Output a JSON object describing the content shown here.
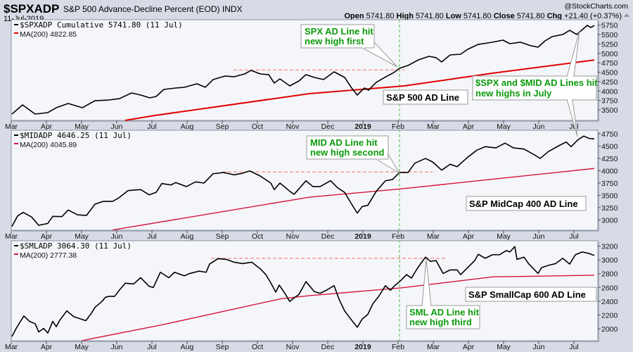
{
  "header": {
    "symbol": "$SPXADP",
    "description": "S&P 500 Advance-Decline Percent (EOD) INDX",
    "date": "11-Jul-2019",
    "watermark": "@StockCharts.com",
    "open_label": "Open",
    "open": "5741.80",
    "high_label": "High",
    "high": "5741.80",
    "low_label": "Low",
    "low": "5741.80",
    "close_label": "Close",
    "close": "5741.80",
    "chg_label": "Chg",
    "chg": "+21.40 (+0.37%)"
  },
  "colors": {
    "line": "#000000",
    "ma_spx": "#e00000",
    "ma_other": "#d4143c",
    "dashed_high": "#f59a9a",
    "feb_marker": "#7fd07f",
    "annotation_text": "#0a9a0a",
    "plot_bg": "#f5f6fa",
    "page_bg": "#d7dbe5"
  },
  "x_axis": {
    "unit": "months since Mar 2018",
    "ticks": [
      {
        "m": 0,
        "label": "Mar"
      },
      {
        "m": 1,
        "label": "Apr"
      },
      {
        "m": 2,
        "label": "May"
      },
      {
        "m": 3,
        "label": "Jun"
      },
      {
        "m": 4,
        "label": "Jul"
      },
      {
        "m": 5,
        "label": "Aug"
      },
      {
        "m": 6,
        "label": "Sep"
      },
      {
        "m": 7,
        "label": "Oct"
      },
      {
        "m": 8,
        "label": "Nov"
      },
      {
        "m": 9,
        "label": "Dec"
      },
      {
        "m": 10,
        "label": "2019",
        "bold": true
      },
      {
        "m": 11,
        "label": "Feb"
      },
      {
        "m": 12,
        "label": "Mar"
      },
      {
        "m": 13,
        "label": "Apr"
      },
      {
        "m": 14,
        "label": "May"
      },
      {
        "m": 15,
        "label": "Jun"
      },
      {
        "m": 16,
        "label": "Jul"
      }
    ],
    "marker_m": 11.04
  },
  "chart_data": [
    {
      "type": "line",
      "legend": "$SPXADP Cumulative 5741.80 (11 Jul)",
      "ma_legend": "MA(200) 4822.85",
      "label": "S&P 500 AD Line",
      "ylim": [
        3220,
        5894
      ],
      "yticks": [
        3500,
        3750,
        4000,
        4250,
        4500,
        4750,
        5000,
        5250,
        5500,
        5750
      ],
      "dashed_high": {
        "from_m": 6.32,
        "to_m": 11.18,
        "value": 4560
      },
      "series": [
        [
          0.02,
          3388
        ],
        [
          0.32,
          3631
        ],
        [
          0.68,
          3388
        ],
        [
          1.04,
          3426
        ],
        [
          1.28,
          3556
        ],
        [
          1.62,
          3669
        ],
        [
          2.02,
          3556
        ],
        [
          2.38,
          3743
        ],
        [
          2.78,
          3762
        ],
        [
          3.08,
          3799
        ],
        [
          3.42,
          3949
        ],
        [
          3.68,
          3893
        ],
        [
          3.94,
          3818
        ],
        [
          4.12,
          3856
        ],
        [
          4.34,
          4043
        ],
        [
          4.68,
          4080
        ],
        [
          4.92,
          4099
        ],
        [
          5.28,
          4192
        ],
        [
          5.52,
          4099
        ],
        [
          5.74,
          4304
        ],
        [
          6.08,
          4398
        ],
        [
          6.34,
          4379
        ],
        [
          6.64,
          4454
        ],
        [
          6.82,
          4548
        ],
        [
          7.08,
          4454
        ],
        [
          7.32,
          4435
        ],
        [
          7.48,
          4211
        ],
        [
          7.64,
          4323
        ],
        [
          7.92,
          4136
        ],
        [
          8.18,
          4267
        ],
        [
          8.38,
          4435
        ],
        [
          8.62,
          4361
        ],
        [
          8.88,
          4304
        ],
        [
          9.18,
          4510
        ],
        [
          9.48,
          4361
        ],
        [
          9.68,
          4080
        ],
        [
          9.84,
          3893
        ],
        [
          10.04,
          4080
        ],
        [
          10.16,
          4024
        ],
        [
          10.38,
          4230
        ],
        [
          10.62,
          4361
        ],
        [
          10.88,
          4491
        ],
        [
          11.04,
          4604
        ],
        [
          11.28,
          4678
        ],
        [
          11.58,
          4828
        ],
        [
          11.88,
          4922
        ],
        [
          12.08,
          4885
        ],
        [
          12.24,
          4772
        ],
        [
          12.48,
          4959
        ],
        [
          12.78,
          4978
        ],
        [
          12.98,
          5109
        ],
        [
          13.28,
          5239
        ],
        [
          13.68,
          5296
        ],
        [
          13.98,
          5352
        ],
        [
          14.18,
          5258
        ],
        [
          14.48,
          5296
        ],
        [
          14.78,
          5202
        ],
        [
          14.98,
          5165
        ],
        [
          15.18,
          5333
        ],
        [
          15.38,
          5445
        ],
        [
          15.68,
          5501
        ],
        [
          15.88,
          5613
        ],
        [
          16.08,
          5501
        ],
        [
          16.24,
          5632
        ],
        [
          16.38,
          5744
        ],
        [
          16.48,
          5688
        ],
        [
          16.58,
          5742
        ]
      ],
      "ma": [
        [
          3.24,
          3220
        ],
        [
          4.08,
          3351
        ],
        [
          8.48,
          3930
        ],
        [
          11.18,
          4136
        ],
        [
          13.68,
          4473
        ],
        [
          16.58,
          4823
        ]
      ]
    },
    {
      "type": "line",
      "legend": "$MIDADP 4646.25 (11 Jul)",
      "ma_legend": "MA(200) 4045.89",
      "label": "S&P MidCap 400 AD Line",
      "ylim": [
        2791,
        4822
      ],
      "yticks": [
        3000,
        3250,
        3500,
        3750,
        4000,
        4250,
        4500,
        4750
      ],
      "dashed_high": {
        "from_m": 6.0,
        "to_m": 11.98,
        "value": 3975
      },
      "series": [
        [
          0.02,
          2867
        ],
        [
          0.18,
          3081
        ],
        [
          0.34,
          3153
        ],
        [
          0.58,
          3058
        ],
        [
          0.78,
          2891
        ],
        [
          1.04,
          2929
        ],
        [
          1.18,
          3073
        ],
        [
          1.44,
          3067
        ],
        [
          1.62,
          3201
        ],
        [
          1.88,
          3105
        ],
        [
          2.14,
          3091
        ],
        [
          2.38,
          3320
        ],
        [
          2.62,
          3377
        ],
        [
          2.88,
          3377
        ],
        [
          3.04,
          3439
        ],
        [
          3.32,
          3596
        ],
        [
          3.68,
          3616
        ],
        [
          3.92,
          3510
        ],
        [
          4.12,
          3559
        ],
        [
          4.28,
          3739
        ],
        [
          4.54,
          3710
        ],
        [
          4.68,
          3759
        ],
        [
          4.98,
          3677
        ],
        [
          5.24,
          3773
        ],
        [
          5.48,
          3749
        ],
        [
          5.74,
          3939
        ],
        [
          6.04,
          3963
        ],
        [
          6.34,
          3916
        ],
        [
          6.58,
          3949
        ],
        [
          6.78,
          3996
        ],
        [
          7.08,
          3892
        ],
        [
          7.38,
          3749
        ],
        [
          7.48,
          3616
        ],
        [
          7.64,
          3749
        ],
        [
          7.92,
          3582
        ],
        [
          8.04,
          3520
        ],
        [
          8.18,
          3630
        ],
        [
          8.38,
          3796
        ],
        [
          8.58,
          3677
        ],
        [
          8.78,
          3677
        ],
        [
          9.08,
          3796
        ],
        [
          9.28,
          3653
        ],
        [
          9.48,
          3559
        ],
        [
          9.68,
          3320
        ],
        [
          9.84,
          3138
        ],
        [
          9.98,
          3273
        ],
        [
          10.14,
          3296
        ],
        [
          10.38,
          3582
        ],
        [
          10.64,
          3796
        ],
        [
          10.84,
          3820
        ],
        [
          11.04,
          3963
        ],
        [
          11.28,
          3963
        ],
        [
          11.48,
          4154
        ],
        [
          11.78,
          4249
        ],
        [
          11.98,
          4178
        ],
        [
          12.24,
          4011
        ],
        [
          12.48,
          4131
        ],
        [
          12.68,
          4082
        ],
        [
          12.98,
          4274
        ],
        [
          13.24,
          4417
        ],
        [
          13.48,
          4488
        ],
        [
          13.78,
          4464
        ],
        [
          14.04,
          4560
        ],
        [
          14.28,
          4464
        ],
        [
          14.58,
          4440
        ],
        [
          14.88,
          4321
        ],
        [
          15.04,
          4249
        ],
        [
          15.28,
          4392
        ],
        [
          15.58,
          4511
        ],
        [
          15.78,
          4583
        ],
        [
          15.92,
          4488
        ],
        [
          16.12,
          4631
        ],
        [
          16.28,
          4703
        ],
        [
          16.44,
          4654
        ],
        [
          16.58,
          4646
        ]
      ],
      "ma": [
        [
          2.88,
          2795
        ],
        [
          8.48,
          3463
        ],
        [
          11.08,
          3630
        ],
        [
          16.58,
          4046
        ]
      ]
    },
    {
      "type": "line",
      "legend": "$SMLADP 3064.30 (11 Jul)",
      "ma_legend": "MA(200) 2777.38",
      "label": "S&P SmallCap 600 AD Line",
      "ylim": [
        1827,
        3277
      ],
      "yticks": [
        2000,
        2200,
        2400,
        2600,
        2800,
        3000,
        3200
      ],
      "dashed_high": {
        "from_m": 5.68,
        "to_m": 12.38,
        "value": 3023
      },
      "series": [
        [
          0.02,
          1888
        ],
        [
          0.14,
          2006
        ],
        [
          0.24,
          2091
        ],
        [
          0.36,
          2186
        ],
        [
          0.52,
          2108
        ],
        [
          0.68,
          2074
        ],
        [
          0.78,
          1955
        ],
        [
          0.92,
          2006
        ],
        [
          1.04,
          1939
        ],
        [
          1.18,
          2108
        ],
        [
          1.28,
          2030
        ],
        [
          1.38,
          2125
        ],
        [
          1.58,
          2260
        ],
        [
          1.78,
          2176
        ],
        [
          1.98,
          2142
        ],
        [
          2.12,
          2118
        ],
        [
          2.28,
          2227
        ],
        [
          2.38,
          2311
        ],
        [
          2.58,
          2397
        ],
        [
          2.68,
          2458
        ],
        [
          2.78,
          2471
        ],
        [
          2.94,
          2471
        ],
        [
          3.08,
          2565
        ],
        [
          3.24,
          2661
        ],
        [
          3.48,
          2651
        ],
        [
          3.68,
          2742
        ],
        [
          3.92,
          2616
        ],
        [
          4.04,
          2600
        ],
        [
          4.24,
          2820
        ],
        [
          4.48,
          2742
        ],
        [
          4.64,
          2820
        ],
        [
          4.92,
          2769
        ],
        [
          5.08,
          2803
        ],
        [
          5.34,
          2837
        ],
        [
          5.54,
          2820
        ],
        [
          5.64,
          2939
        ],
        [
          5.88,
          3017
        ],
        [
          6.12,
          3007
        ],
        [
          6.34,
          2966
        ],
        [
          6.58,
          2946
        ],
        [
          6.84,
          2966
        ],
        [
          7.08,
          2870
        ],
        [
          7.24,
          2786
        ],
        [
          7.38,
          2667
        ],
        [
          7.52,
          2532
        ],
        [
          7.62,
          2634
        ],
        [
          7.78,
          2515
        ],
        [
          7.92,
          2397
        ],
        [
          8.04,
          2447
        ],
        [
          8.18,
          2498
        ],
        [
          8.38,
          2684
        ],
        [
          8.62,
          2539
        ],
        [
          8.78,
          2515
        ],
        [
          8.98,
          2565
        ],
        [
          9.18,
          2626
        ],
        [
          9.32,
          2430
        ],
        [
          9.48,
          2260
        ],
        [
          9.68,
          2125
        ],
        [
          9.84,
          2023
        ],
        [
          9.98,
          2142
        ],
        [
          10.14,
          2209
        ],
        [
          10.28,
          2362
        ],
        [
          10.44,
          2464
        ],
        [
          10.64,
          2626
        ],
        [
          10.78,
          2559
        ],
        [
          10.92,
          2634
        ],
        [
          11.08,
          2702
        ],
        [
          11.24,
          2786
        ],
        [
          11.38,
          2735
        ],
        [
          11.54,
          2870
        ],
        [
          11.68,
          2972
        ],
        [
          11.78,
          3040
        ],
        [
          11.92,
          2979
        ],
        [
          12.08,
          2990
        ],
        [
          12.28,
          2803
        ],
        [
          12.48,
          2854
        ],
        [
          12.68,
          2854
        ],
        [
          12.78,
          2786
        ],
        [
          12.98,
          2888
        ],
        [
          13.18,
          2990
        ],
        [
          13.28,
          3081
        ],
        [
          13.48,
          3023
        ],
        [
          13.68,
          3074
        ],
        [
          13.88,
          3074
        ],
        [
          14.08,
          3135
        ],
        [
          14.18,
          3115
        ],
        [
          14.32,
          3193
        ],
        [
          14.38,
          3007
        ],
        [
          14.58,
          3040
        ],
        [
          14.72,
          2939
        ],
        [
          14.98,
          2803
        ],
        [
          15.08,
          2888
        ],
        [
          15.28,
          2921
        ],
        [
          15.48,
          2946
        ],
        [
          15.68,
          3023
        ],
        [
          15.88,
          2939
        ],
        [
          16.04,
          3074
        ],
        [
          16.24,
          3115
        ],
        [
          16.44,
          3091
        ],
        [
          16.58,
          3064
        ]
      ],
      "ma": [
        [
          2.02,
          1830
        ],
        [
          4.28,
          2057
        ],
        [
          7.68,
          2437
        ],
        [
          8.48,
          2481
        ],
        [
          11.08,
          2593
        ],
        [
          13.68,
          2753
        ],
        [
          16.58,
          2777
        ]
      ]
    }
  ],
  "annotations": {
    "spx_first": [
      "SPX AD Line hit",
      "new high first"
    ],
    "mid_second": [
      "MID AD Line hit",
      "new high second"
    ],
    "sml_third": [
      "SML AD Line hit",
      "new high third"
    ],
    "july_highs": [
      "$SPX and $MID AD Lines hit",
      "new highs in July"
    ]
  }
}
